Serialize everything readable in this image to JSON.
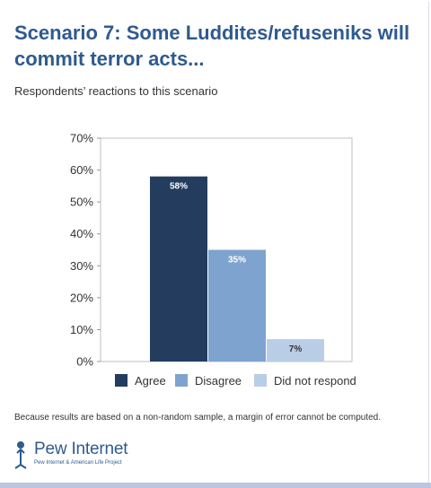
{
  "title": "Scenario 7: Some Luddites/refuseniks will commit terror acts...",
  "subtitle": "Respondents’ reactions to this scenario",
  "footnote": "Because results are based on a non-random sample, a margin of error cannot be computed.",
  "logo": {
    "name": "Pew Internet",
    "tagline": "Pew Internet & American Life Project"
  },
  "chart_data": {
    "type": "bar",
    "categories": [
      "Agree",
      "Disagree",
      "Did not respond"
    ],
    "values": [
      58,
      35,
      7
    ],
    "value_labels": [
      "58%",
      "35%",
      "7%"
    ],
    "colors": [
      "#243d5e",
      "#7fa3cf",
      "#b9cde6"
    ],
    "ylim": [
      0,
      70
    ],
    "yticks": [
      "0%",
      "10%",
      "20%",
      "30%",
      "40%",
      "50%",
      "60%",
      "70%"
    ],
    "legend": [
      "Agree",
      "Disagree",
      "Did not respond"
    ],
    "legend_placement": "bottom",
    "grid": false
  }
}
